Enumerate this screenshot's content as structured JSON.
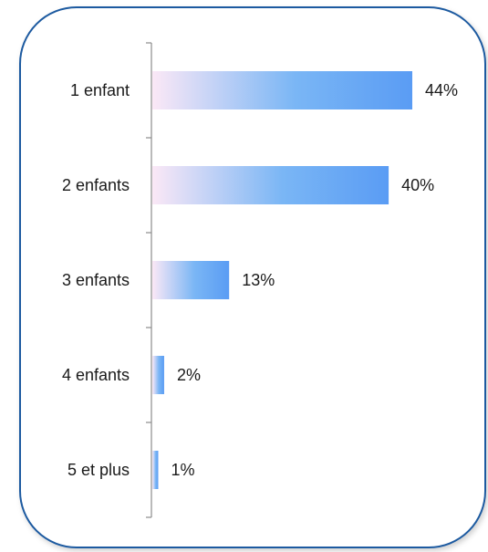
{
  "chart_data": {
    "type": "bar",
    "orientation": "horizontal",
    "categories": [
      "1 enfant",
      "2 enfants",
      "3 enfants",
      "4 enfants",
      "5 et plus"
    ],
    "values": [
      44,
      40,
      13,
      2,
      1
    ],
    "value_labels": [
      "44%",
      "40%",
      "13%",
      "2%",
      "1%"
    ],
    "unit": "%",
    "title": "",
    "xlabel": "",
    "ylabel": "",
    "xlim": [
      0,
      44
    ],
    "grid": false,
    "legend": "none",
    "colors": {
      "frame_border": "#1e5aa0",
      "axis_line": "#8c8c8c",
      "bar_start": "#fbe8f6",
      "bar_mid": "#7ab6f5",
      "bar_end": "#5a9cf4"
    }
  }
}
